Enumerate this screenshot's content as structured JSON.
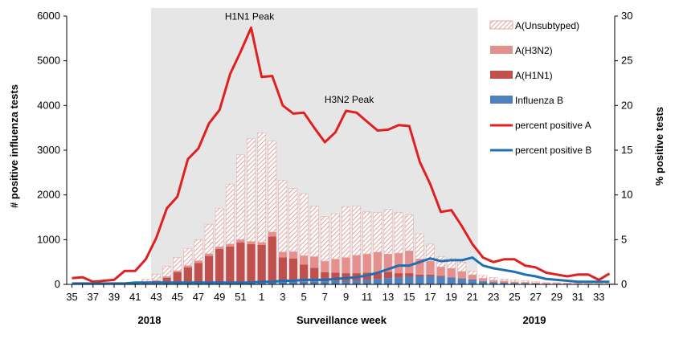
{
  "chart_data": {
    "type": "bar",
    "title": "",
    "xlabel": "Surveillance  week",
    "ylabel": "# positive influenza tests",
    "y2label": "% positive tests",
    "ylim": [
      0,
      6000
    ],
    "y2lim": [
      0,
      30
    ],
    "yticks": [
      0,
      1000,
      2000,
      3000,
      4000,
      5000,
      6000
    ],
    "y2ticks": [
      0,
      5,
      10,
      15,
      20,
      25,
      30
    ],
    "season_labels": [
      "2018",
      "2019"
    ],
    "shaded_weeks": [
      "43",
      "21"
    ],
    "weeks": [
      "35",
      "36",
      "37",
      "38",
      "39",
      "40",
      "41",
      "42",
      "43",
      "44",
      "45",
      "46",
      "47",
      "48",
      "49",
      "50",
      "51",
      "52",
      "1",
      "2",
      "3",
      "4",
      "5",
      "6",
      "7",
      "8",
      "9",
      "10",
      "11",
      "12",
      "13",
      "14",
      "15",
      "16",
      "17",
      "18",
      "19",
      "20",
      "21",
      "22",
      "23",
      "24",
      "25",
      "26",
      "27",
      "28",
      "29",
      "30",
      "31",
      "32",
      "33",
      "34"
    ],
    "tick_labels": [
      "35",
      "37",
      "39",
      "41",
      "43",
      "45",
      "47",
      "49",
      "51",
      "1",
      "3",
      "5",
      "7",
      "9",
      "11",
      "13",
      "15",
      "17",
      "19",
      "21",
      "23",
      "25",
      "27",
      "29",
      "31",
      "33"
    ],
    "series": [
      {
        "name": "Influenza B",
        "kind": "bar",
        "color": "#4f81bd",
        "values": [
          5,
          5,
          5,
          5,
          5,
          5,
          8,
          10,
          15,
          20,
          25,
          30,
          30,
          35,
          40,
          45,
          40,
          40,
          40,
          50,
          55,
          60,
          65,
          70,
          70,
          75,
          80,
          90,
          100,
          120,
          140,
          150,
          170,
          180,
          190,
          170,
          150,
          130,
          110,
          70,
          50,
          40,
          30,
          25,
          20,
          15,
          15,
          10,
          10,
          10,
          10,
          10
        ]
      },
      {
        "name": "A(H1N1)",
        "kind": "bar",
        "color": "#c0504d",
        "values": [
          0,
          0,
          0,
          0,
          0,
          0,
          10,
          20,
          60,
          130,
          250,
          350,
          450,
          600,
          750,
          800,
          900,
          860,
          840,
          1020,
          550,
          520,
          380,
          300,
          200,
          190,
          170,
          160,
          160,
          150,
          140,
          100,
          80,
          40,
          30,
          20,
          10,
          10,
          5,
          5,
          5,
          5,
          3,
          2,
          2,
          1,
          1,
          1,
          1,
          1,
          1,
          1
        ]
      },
      {
        "name": "A(H3N2)",
        "kind": "bar",
        "color": "#e6908e",
        "values": [
          0,
          0,
          0,
          0,
          0,
          0,
          5,
          10,
          15,
          25,
          30,
          40,
          50,
          50,
          50,
          60,
          60,
          60,
          60,
          100,
          120,
          150,
          200,
          250,
          250,
          300,
          350,
          400,
          420,
          450,
          400,
          450,
          500,
          350,
          300,
          200,
          200,
          150,
          100,
          60,
          40,
          30,
          25,
          20,
          15,
          10,
          10,
          10,
          8,
          5,
          5,
          5
        ]
      },
      {
        "name": "A(Unsubtyped)",
        "kind": "bar",
        "color": "#e8b4b2",
        "values": [
          0,
          0,
          0,
          0,
          0,
          0,
          27,
          72,
          135,
          225,
          295,
          380,
          470,
          660,
          860,
          1335,
          1900,
          2300,
          2450,
          2040,
          1605,
          1415,
          1385,
          1130,
          1000,
          1015,
          1140,
          1100,
          940,
          885,
          1000,
          910,
          800,
          560,
          380,
          230,
          230,
          210,
          85,
          65,
          55,
          45,
          42,
          33,
          23,
          14,
          14,
          9,
          6,
          4,
          4,
          4
        ]
      },
      {
        "name": "percent positive A",
        "kind": "line",
        "axis": "y2",
        "color": "#e02020",
        "values": [
          0.7,
          0.8,
          0.3,
          0.4,
          0.5,
          1.5,
          1.5,
          2.8,
          5.2,
          8.5,
          9.8,
          14,
          15.2,
          18,
          19.5,
          23.5,
          26,
          28.7,
          23.2,
          23.3,
          20,
          19.1,
          19.2,
          17.5,
          15.9,
          17,
          19.4,
          19.2,
          18.2,
          17.2,
          17.3,
          17.8,
          17.7,
          13.7,
          11.2,
          8.1,
          8.3,
          6.5,
          4.5,
          3,
          2.5,
          2.8,
          2.8,
          2.1,
          1.9,
          1.3,
          1.1,
          0.9,
          1.1,
          1.1,
          0.5,
          1.2
        ]
      },
      {
        "name": "percent positive B",
        "kind": "line",
        "axis": "y2",
        "color": "#1f6fb2",
        "values": [
          0.1,
          0.1,
          0.1,
          0.1,
          0.1,
          0.1,
          0.2,
          0.2,
          0.2,
          0.2,
          0.2,
          0.2,
          0.2,
          0.2,
          0.2,
          0.2,
          0.2,
          0.2,
          0.3,
          0.3,
          0.4,
          0.4,
          0.5,
          0.5,
          0.5,
          0.6,
          0.7,
          0.8,
          1.0,
          1.3,
          1.7,
          2.1,
          2.1,
          2.5,
          2.9,
          2.6,
          2.7,
          2.7,
          3.0,
          2.1,
          1.8,
          1.6,
          1.4,
          1.1,
          0.9,
          0.6,
          0.5,
          0.4,
          0.3,
          0.3,
          0.3,
          0.3
        ]
      }
    ],
    "annotations": [
      {
        "text": "H1N1 Peak",
        "week": "52"
      },
      {
        "text": "H3N2 Peak",
        "week": "9"
      }
    ],
    "legend": [
      "A(Unsubtyped)",
      "A(H3N2)",
      "A(H1N1)",
      "Influenza B",
      "percent positive A",
      "percent positive B"
    ],
    "legend_position": "right"
  }
}
